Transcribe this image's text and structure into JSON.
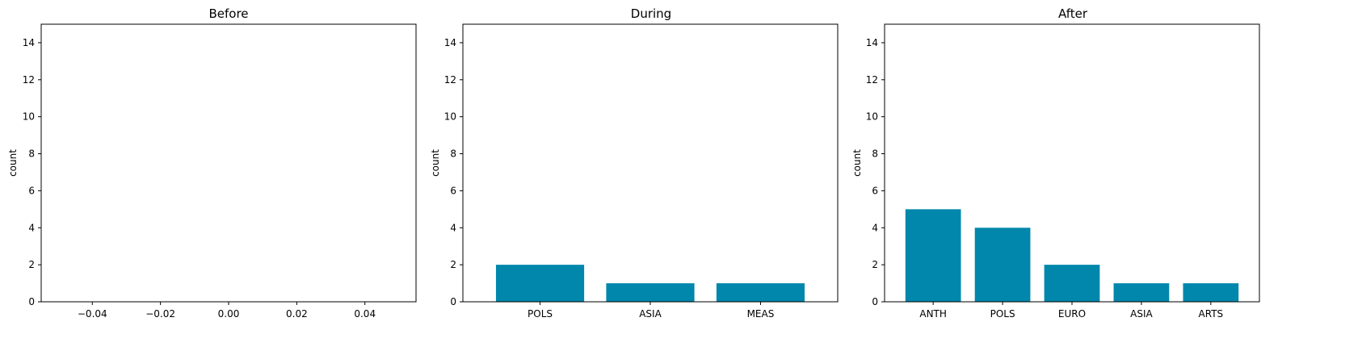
{
  "chart_data": [
    {
      "type": "bar",
      "title": "Before",
      "xlabel": "",
      "ylabel": "count",
      "ylim": [
        0,
        15
      ],
      "yticks": [
        0,
        2,
        4,
        6,
        8,
        10,
        12,
        14
      ],
      "xlim": [
        -0.055,
        0.055
      ],
      "xtick_labels": [
        "−0.04",
        "−0.02",
        "0.00",
        "0.02",
        "0.04"
      ],
      "xtick_values": [
        -0.04,
        -0.02,
        0.0,
        0.02,
        0.04
      ],
      "categories": [],
      "values": [],
      "bar_color": "#0087AB",
      "grid": false,
      "legend": false
    },
    {
      "type": "bar",
      "title": "During",
      "xlabel": "",
      "ylabel": "count",
      "ylim": [
        0,
        15
      ],
      "yticks": [
        0,
        2,
        4,
        6,
        8,
        10,
        12,
        14
      ],
      "categories": [
        "POLS",
        "ASIA",
        "MEAS"
      ],
      "values": [
        2,
        1,
        1
      ],
      "bar_color": "#0087AB",
      "grid": false,
      "legend": false
    },
    {
      "type": "bar",
      "title": "After",
      "xlabel": "",
      "ylabel": "count",
      "ylim": [
        0,
        15
      ],
      "yticks": [
        0,
        2,
        4,
        6,
        8,
        10,
        12,
        14
      ],
      "categories": [
        "ANTH",
        "POLS",
        "EURO",
        "ASIA",
        "ARTS"
      ],
      "values": [
        5,
        4,
        2,
        1,
        1
      ],
      "bar_color": "#0087AB",
      "grid": false,
      "legend": false
    }
  ]
}
